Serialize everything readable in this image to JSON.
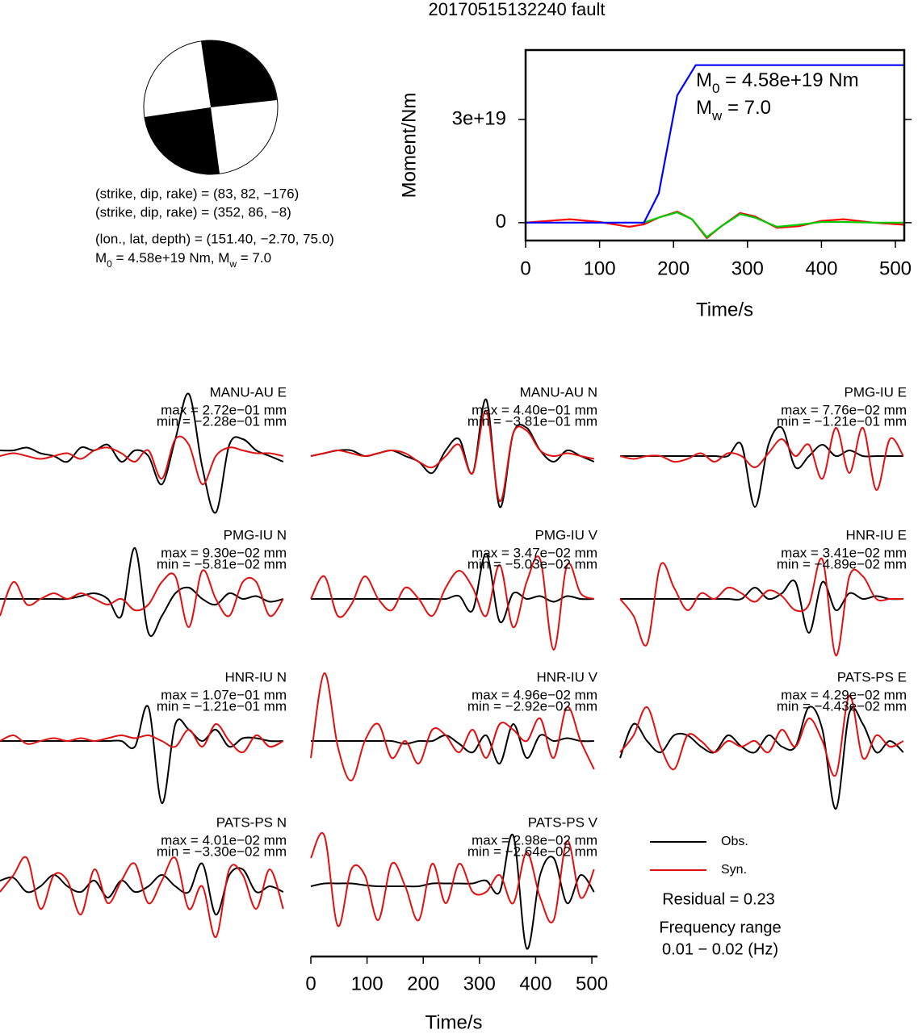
{
  "title": "20170515132240 fault",
  "mechanism": {
    "lines": [
      "(strike, dip, rake) = (83, 82, −176)",
      "(strike, dip, rake) = (352, 86, −8)",
      "(lon., lat, depth) = (151.40, −2.70, 75.0)"
    ],
    "moment_parts": [
      "M",
      "0",
      " = 4.58e+19 Nm, M",
      "w",
      " = 7.0"
    ]
  },
  "chart_data": [
    {
      "type": "line",
      "y_label": "Moment/Nm",
      "x_label": "Time/s",
      "xlim": [
        0,
        512
      ],
      "ylim": [
        -5.2e+18,
        5.02e+19
      ],
      "xticks": [
        0,
        100,
        200,
        300,
        400,
        500
      ],
      "yticks": [
        0,
        {
          "value": 3e+19,
          "label": "3e+19"
        }
      ],
      "annotations": [
        [
          "M",
          "0",
          " = 4.58e+19 Nm"
        ],
        [
          "M",
          "w",
          " = 7.0"
        ]
      ],
      "series": [
        {
          "color": "#ff0000",
          "x": [
            0,
            30,
            60,
            100,
            140,
            160,
            180,
            205,
            225,
            245,
            265,
            290,
            310,
            340,
            370,
            400,
            430,
            470,
            512
          ],
          "values": [
            0,
            5e+17,
            1e+18,
            2e+17,
            -1.2e+18,
            -5e+17,
            1.5e+18,
            3.2e+18,
            1e+18,
            -4.5e+18,
            -1e+18,
            2.8e+18,
            1.8e+18,
            -1.5e+18,
            -1e+18,
            5e+17,
            1e+18,
            0,
            -6e+17
          ]
        },
        {
          "color": "#00cc00",
          "x": [
            160,
            180,
            205,
            225,
            245,
            265,
            290,
            310,
            340,
            370,
            400,
            430,
            470,
            512
          ],
          "values": [
            0,
            1.5e+18,
            3e+18,
            1e+18,
            -4.2e+18,
            -1e+18,
            2.5e+18,
            1.5e+18,
            -1.2e+18,
            -6e+17,
            2e+17,
            2e+17,
            0,
            0
          ]
        },
        {
          "color": "#0000ff",
          "x": [
            0,
            160,
            180,
            205,
            230,
            512
          ],
          "values": [
            0,
            0,
            8.5e+18,
            3.7e+19,
            4.58e+19,
            4.58e+19
          ]
        }
      ]
    },
    {
      "type": "waveform",
      "x_label": "Time/s",
      "xlim": [
        0,
        510
      ],
      "xticks": [
        0,
        100,
        200,
        300,
        400,
        500
      ],
      "x": [
        0,
        24,
        48,
        72,
        96,
        120,
        144,
        168,
        192,
        216,
        240,
        264,
        288,
        312,
        336,
        360,
        384,
        408,
        432,
        456,
        480,
        504
      ],
      "series": [
        {
          "name": "Obs.",
          "color": "#000000"
        },
        {
          "name": "Syn.",
          "color": "#e01010"
        }
      ],
      "residual": "Residual = 0.23",
      "frequency_title": "Frequency range",
      "frequency_range": "0.01 − 0.02 (Hz)",
      "panels": [
        {
          "station": "MANU-AU E",
          "max": "max = 2.72e−01 mm",
          "min": "min = −2.28e−01 mm",
          "obs": [
            0.1,
            0.1,
            0.15,
            0.05,
            0,
            -0.1,
            0.15,
            0.1,
            0.2,
            -0.1,
            0.1,
            0.0,
            -0.5,
            0.3,
            1.1,
            -0.2,
            -1.0,
            0.2,
            0.3,
            0.1,
            0,
            -0.1
          ],
          "syn": [
            0,
            0.05,
            0.0,
            -0.05,
            0,
            0.05,
            -0.05,
            0.1,
            0.15,
            0.05,
            -0.1,
            0.1,
            -0.4,
            0.3,
            0.2,
            -0.5,
            0.0,
            0.15,
            0.1,
            0.05,
            0.05,
            0.0
          ]
        },
        {
          "station": "MANU-AU N",
          "max": "max = 4.40e−01 mm",
          "min": "min = −3.81e−01 mm",
          "obs": [
            0.0,
            0.05,
            0.1,
            0.1,
            0.0,
            0.05,
            0.1,
            0.0,
            -0.1,
            -0.3,
            0.1,
            0.3,
            -0.3,
            1.0,
            -0.9,
            0.4,
            0.5,
            0.1,
            -0.1,
            0.1,
            0.0,
            -0.1
          ],
          "syn": [
            0.0,
            0.05,
            0.1,
            0.05,
            0.0,
            0.05,
            0.1,
            0.05,
            -0.1,
            -0.2,
            0.0,
            0.2,
            -0.3,
            0.8,
            -0.8,
            0.4,
            0.45,
            0.1,
            0.0,
            0.05,
            0.0,
            -0.05
          ]
        },
        {
          "station": "PMG-IU E",
          "max": "max = 7.76e−02 mm",
          "min": "min = −1.21e−01 mm",
          "obs": [
            0,
            0,
            0,
            0,
            0,
            0,
            0,
            0,
            0,
            0.2,
            -0.9,
            0.2,
            0.5,
            -0.2,
            0.0,
            0.2,
            0.0,
            0.1,
            0.0,
            0.0,
            0.0,
            0.0
          ],
          "syn": [
            0,
            -0.05,
            0,
            0,
            -0.1,
            -0.05,
            0.05,
            -0.1,
            0.05,
            0.0,
            -0.2,
            0.05,
            0.3,
            0.0,
            0.2,
            -0.4,
            0.5,
            -0.3,
            0.5,
            -0.6,
            0.3,
            0.0
          ]
        },
        {
          "station": "PMG-IU N",
          "max": "max = 9.30e−02 mm",
          "min": "min = −5.81e−02 mm",
          "obs": [
            0,
            0,
            0,
            0,
            0,
            0,
            0.05,
            0.1,
            0.0,
            -0.3,
            0.9,
            -0.6,
            -0.3,
            0.1,
            0.2,
            0.0,
            -0.1,
            0.1,
            0,
            0.05,
            -0.05,
            0
          ],
          "syn": [
            -0.3,
            0.3,
            -0.1,
            0.0,
            0.1,
            0.0,
            0.1,
            0.0,
            -0.1,
            0.0,
            -0.2,
            -0.1,
            0.3,
            0.4,
            -0.5,
            0.5,
            0.0,
            -0.3,
            0.3,
            0.3,
            -0.3,
            0.0
          ]
        },
        {
          "station": "PMG-IU V",
          "max": "max = 3.47e−02 mm",
          "min": "min = −5.03e−02 mm",
          "obs": [
            0,
            0,
            0,
            0,
            0,
            0,
            0,
            0,
            0,
            0,
            0.0,
            0.05,
            -0.2,
            0.8,
            -0.4,
            0.1,
            0.0,
            0.05,
            -0.05,
            0.05,
            0,
            0
          ],
          "syn": [
            0,
            0.4,
            -0.3,
            -0.1,
            0.4,
            0.0,
            -0.2,
            0.2,
            0.0,
            -0.3,
            0.2,
            0.5,
            0.2,
            -0.3,
            0.6,
            -0.5,
            0.3,
            0.7,
            -0.9,
            0.6,
            0.1,
            0
          ]
        },
        {
          "station": "HNR-IU E",
          "max": "max = 3.41e−02 mm",
          "min": "min = −4.89e−02 mm",
          "obs": [
            0,
            0,
            0,
            0,
            0,
            0,
            0,
            0,
            0,
            0,
            0.2,
            0,
            0.1,
            0.3,
            -0.6,
            0.3,
            -0.2,
            0.1,
            0,
            0.05,
            0,
            0
          ],
          "syn": [
            0,
            -0.3,
            -0.8,
            0.6,
            0.2,
            -0.2,
            0.1,
            0.0,
            0.2,
            0.1,
            -0.05,
            0.15,
            0.05,
            -0.2,
            -0.1,
            0.7,
            -1.0,
            0.4,
            0.4,
            0.0,
            0.0,
            0.0
          ]
        },
        {
          "station": "HNR-IU N",
          "max": "max = 1.07e−01 mm",
          "min": "min = −1.21e−01 mm",
          "obs": [
            0,
            0,
            0,
            0,
            0,
            0,
            0,
            0,
            0,
            0,
            -0.1,
            0.6,
            -1.1,
            0.3,
            0.2,
            0.0,
            0.2,
            -0.1,
            0.05,
            0.05,
            0,
            0
          ],
          "syn": [
            0,
            0.1,
            -0.05,
            0,
            0.05,
            0,
            0.05,
            0,
            0.05,
            0.1,
            0.05,
            0.1,
            0.0,
            -0.1,
            0.2,
            -0.1,
            0.3,
            0.0,
            -0.2,
            0.1,
            -0.1,
            0
          ]
        },
        {
          "station": "HNR-IU V",
          "max": "max = 4.96e−02 mm",
          "min": "min = −2.92e−02 mm",
          "obs": [
            0,
            0,
            0,
            0,
            0,
            0,
            0,
            -0.05,
            0,
            0,
            0.1,
            -0.05,
            -0.2,
            0.1,
            -0.4,
            0.3,
            -0.3,
            0.1,
            0,
            0.05,
            0,
            0
          ],
          "syn": [
            -0.3,
            1.2,
            -0.1,
            -0.7,
            0.0,
            0.3,
            -0.3,
            0.0,
            -0.4,
            0.2,
            0.1,
            -0.2,
            0.2,
            -0.3,
            0.3,
            0.2,
            0.0,
            0.4,
            -0.3,
            0.6,
            0.0,
            -0.5
          ]
        },
        {
          "station": "PATS-PS E",
          "max": "max = 4.29e−02 mm",
          "min": "min = −4.43e−02 mm",
          "obs": [
            -0.3,
            0.3,
            0.0,
            -0.2,
            0.1,
            0.1,
            -0.1,
            -0.2,
            0.1,
            -0.1,
            -0.2,
            0.1,
            -0.1,
            -0.1,
            0.6,
            0.2,
            -1.2,
            0.5,
            0.3,
            -0.2,
            0.0,
            -0.2
          ],
          "syn": [
            -0.2,
            0.1,
            0.6,
            -0.1,
            -0.5,
            0.1,
            0.0,
            -0.2,
            0.0,
            -0.1,
            0.0,
            -0.2,
            0.2,
            -0.1,
            0.4,
            0.0,
            -0.6,
            0.8,
            -0.3,
            0.1,
            -0.1,
            0
          ]
        },
        {
          "station": "PATS-PS N",
          "max": "max = 4.01e−02 mm",
          "min": "min = −3.30e−02 mm",
          "obs": [
            0.1,
            0.15,
            -0.1,
            0.0,
            0.2,
            0.0,
            -0.1,
            0.1,
            -0.2,
            0.1,
            -0.1,
            0.0,
            0.2,
            0.0,
            -0.1,
            0.4,
            -0.5,
            0.2,
            0.3,
            -0.1,
            0.0,
            -0.1
          ],
          "syn": [
            -0.1,
            0.2,
            0.5,
            -0.4,
            0.2,
            0.1,
            -0.5,
            0.3,
            -0.3,
            0.1,
            0.4,
            -0.3,
            0.1,
            0.5,
            -0.4,
            0.0,
            -0.9,
            0.3,
            0.2,
            -0.4,
            0.3,
            -0.4
          ]
        },
        {
          "station": "PATS-PS V",
          "max": "max = 2.98e−02 mm",
          "min": "min = −2.64e−02 mm",
          "obs": [
            0,
            0.05,
            0.05,
            0.05,
            0.02,
            0,
            0,
            0,
            0,
            0.05,
            0.05,
            0.05,
            0.05,
            0.1,
            -0.1,
            0.9,
            -1.1,
            0.2,
            0.5,
            -0.3,
            0.2,
            -0.1
          ],
          "syn": [
            0.5,
            0.9,
            -0.7,
            0.3,
            0.2,
            -0.6,
            0.4,
            0.0,
            -0.6,
            0.4,
            -0.3,
            0.4,
            -0.1,
            -0.1,
            0.2,
            -0.3,
            0.6,
            -0.2,
            -0.6,
            0.8,
            -0.2,
            0.3
          ]
        }
      ]
    }
  ]
}
